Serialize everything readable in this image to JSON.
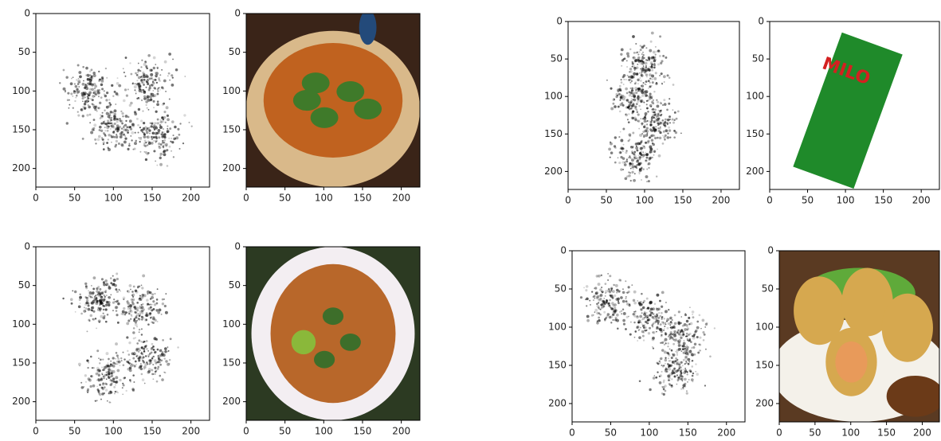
{
  "chart_data": [
    {
      "type": "saliency",
      "xlim": [
        0,
        224
      ],
      "ylim": [
        224,
        0
      ],
      "xticks": [
        0,
        50,
        100,
        150,
        200
      ],
      "yticks": [
        0,
        50,
        100,
        150,
        200
      ]
    },
    {
      "type": "photo",
      "xlim": [
        0,
        224
      ],
      "ylim": [
        224,
        0
      ],
      "xticks": [
        0,
        50,
        100,
        150,
        200
      ],
      "yticks": [
        0,
        50,
        100,
        150,
        200
      ]
    },
    {
      "type": "saliency",
      "xlim": [
        0,
        224
      ],
      "ylim": [
        224,
        0
      ],
      "xticks": [
        0,
        50,
        100,
        150,
        200
      ],
      "yticks": [
        0,
        50,
        100,
        150,
        200
      ]
    },
    {
      "type": "photo",
      "xlim": [
        0,
        224
      ],
      "ylim": [
        224,
        0
      ],
      "xticks": [
        0,
        50,
        100,
        150,
        200
      ],
      "yticks": [
        0,
        50,
        100,
        150,
        200
      ],
      "image_text": "MILO"
    },
    {
      "type": "saliency",
      "xlim": [
        0,
        224
      ],
      "ylim": [
        224,
        0
      ],
      "xticks": [
        0,
        50,
        100,
        150,
        200
      ],
      "yticks": [
        0,
        50,
        100,
        150,
        200
      ]
    },
    {
      "type": "photo",
      "xlim": [
        0,
        224
      ],
      "ylim": [
        224,
        0
      ],
      "xticks": [
        0,
        50,
        100,
        150,
        200
      ],
      "yticks": [
        0,
        50,
        100,
        150,
        200
      ]
    },
    {
      "type": "saliency",
      "xlim": [
        0,
        224
      ],
      "ylim": [
        224,
        0
      ],
      "xticks": [
        0,
        50,
        100,
        150,
        200
      ],
      "yticks": [
        0,
        50,
        100,
        150,
        200
      ]
    },
    {
      "type": "photo",
      "xlim": [
        0,
        224
      ],
      "ylim": [
        224,
        0
      ],
      "xticks": [
        0,
        50,
        100,
        150,
        200
      ],
      "yticks": [
        0,
        50,
        100,
        150,
        200
      ]
    }
  ]
}
